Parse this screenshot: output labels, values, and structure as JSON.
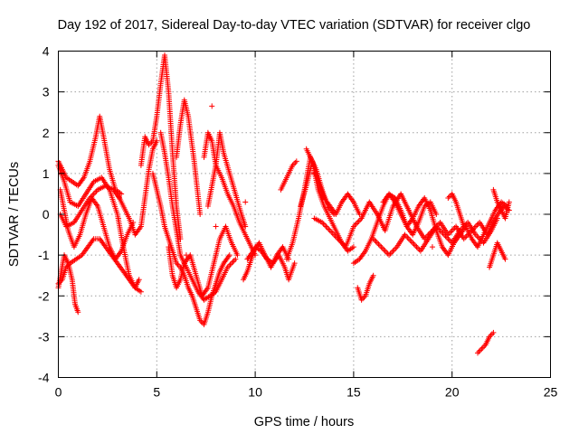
{
  "chart_data": {
    "type": "scatter",
    "title": "Day 192 of 2017, Sidereal Day-to-day VTEC variation (SDTVAR) for receiver clgo",
    "xlabel": "GPS time / hours",
    "ylabel": "SDTVAR / TECUs",
    "xlim": [
      0,
      25
    ],
    "ylim": [
      -4,
      4
    ],
    "x_ticks": [
      0,
      5,
      10,
      15,
      20,
      25
    ],
    "y_ticks": [
      -4,
      -3,
      -2,
      -1,
      0,
      1,
      2,
      3,
      4
    ],
    "x_tick_labels": [
      "0",
      "5",
      "10",
      "15",
      "20",
      "25"
    ],
    "y_tick_labels": [
      "-4",
      "-3",
      "-2",
      "-1",
      "0",
      "1",
      "2",
      "3",
      "4"
    ],
    "grid": true,
    "marker": "+",
    "series": [
      {
        "name": "SDTVAR",
        "color": "#ff0000",
        "tracks": [
          {
            "x": [
              0.0,
              0.2,
              0.4,
              0.7,
              1.0,
              1.3,
              1.6,
              1.9,
              2.1,
              2.3,
              2.6,
              2.9,
              3.2
            ],
            "y": [
              1.3,
              1.1,
              0.9,
              0.8,
              0.7,
              0.9,
              1.3,
              1.9,
              2.4,
              1.9,
              1.1,
              0.6,
              0.5
            ]
          },
          {
            "x": [
              0.0,
              0.15,
              0.3,
              0.5,
              0.7,
              0.85,
              1.0
            ],
            "y": [
              -1.8,
              -1.4,
              -1.0,
              -1.2,
              -1.6,
              -2.2,
              -2.4
            ]
          },
          {
            "x": [
              0.0,
              0.3,
              0.6,
              1.0,
              1.4,
              1.8,
              2.2,
              2.6,
              3.0,
              3.3,
              3.6,
              3.9,
              4.1
            ],
            "y": [
              1.2,
              0.8,
              0.3,
              0.2,
              0.5,
              0.8,
              0.9,
              0.6,
              0.0,
              -0.8,
              -1.5,
              -1.8,
              -1.6
            ]
          },
          {
            "x": [
              0.0,
              0.2,
              0.4,
              0.6,
              0.9,
              1.2,
              1.5,
              1.8,
              2.1,
              2.4,
              2.7,
              3.0,
              3.3,
              3.6,
              3.9,
              4.2
            ],
            "y": [
              -1.7,
              -1.6,
              -1.3,
              -1.2,
              -1.1,
              -1.0,
              -0.8,
              -0.6,
              -0.6,
              -0.8,
              -1.0,
              -1.2,
              -1.4,
              -1.6,
              -1.8,
              -1.9
            ]
          },
          {
            "x": [
              0.1,
              0.3,
              0.5,
              0.8,
              1.1,
              1.4,
              1.7,
              2.0,
              2.3,
              2.6,
              2.9,
              3.2,
              3.5,
              3.8
            ],
            "y": [
              0.6,
              0.1,
              -0.4,
              -0.8,
              -0.5,
              0.0,
              0.4,
              0.2,
              -0.3,
              -0.8,
              -1.1,
              -0.9,
              -0.5,
              -0.2
            ]
          },
          {
            "x": [
              0.1,
              0.4,
              0.8,
              1.2,
              1.6,
              2.0,
              2.4,
              2.8,
              3.1
            ],
            "y": [
              0.0,
              -0.3,
              -0.2,
              0.1,
              0.4,
              0.6,
              0.7,
              0.6,
              0.4
            ]
          },
          {
            "x": [
              3.0,
              3.3,
              3.6,
              3.9,
              4.2,
              4.4,
              4.6,
              4.8,
              5.0
            ],
            "y": [
              0.5,
              0.2,
              -0.1,
              -0.5,
              -0.3,
              0.4,
              1.1,
              1.6,
              1.8
            ]
          },
          {
            "x": [
              4.2,
              4.4,
              4.6,
              4.8,
              5.0,
              5.2,
              5.4,
              5.6,
              5.8,
              6.0,
              6.2
            ],
            "y": [
              1.2,
              1.9,
              1.7,
              1.8,
              2.4,
              3.2,
              3.9,
              3.0,
              1.5,
              0.2,
              -0.6
            ]
          },
          {
            "x": [
              4.8,
              5.0,
              5.2,
              5.4,
              5.6,
              5.8,
              6.0,
              6.2,
              6.4,
              6.6,
              6.8,
              7.0,
              7.2,
              7.4,
              7.6,
              7.8,
              8.0,
              8.2,
              8.4,
              8.7
            ],
            "y": [
              1.0,
              0.6,
              0.2,
              -0.3,
              -0.6,
              -0.9,
              -1.2,
              -1.3,
              -1.5,
              -1.8,
              -2.0,
              -2.3,
              -2.6,
              -2.7,
              -2.4,
              -2.0,
              -1.7,
              -1.4,
              -1.2,
              -1.0
            ]
          },
          {
            "x": [
              5.2,
              5.4,
              5.6,
              5.8,
              6.0,
              6.2,
              6.5,
              6.8,
              7.1,
              7.4,
              7.7,
              8.0,
              8.3,
              8.6,
              9.0
            ],
            "y": [
              2.0,
              1.5,
              0.9,
              0.2,
              -0.4,
              -1.0,
              -1.3,
              -1.6,
              -1.9,
              -2.1,
              -2.0,
              -1.9,
              -1.6,
              -1.3,
              -1.1
            ]
          },
          {
            "x": [
              5.6,
              5.8,
              6.0,
              6.2,
              6.4,
              6.7,
              7.0,
              7.3,
              7.6,
              7.9,
              8.2,
              8.5,
              8.8,
              9.1
            ],
            "y": [
              -0.8,
              -1.5,
              -1.8,
              -1.6,
              -1.2,
              -1.0,
              -1.5,
              -2.0,
              -1.8,
              -1.2,
              -0.6,
              -0.3,
              -0.7,
              -1.0
            ]
          },
          {
            "x": [
              6.0,
              6.2,
              6.4,
              6.6,
              6.9,
              7.2
            ],
            "y": [
              1.4,
              2.2,
              2.8,
              2.4,
              1.3,
              0.0
            ]
          },
          {
            "x": [
              7.4,
              7.6,
              7.8,
              8.0,
              8.2,
              8.4,
              8.7,
              9.0,
              9.3,
              9.5
            ],
            "y": [
              1.4,
              2.0,
              1.8,
              1.2,
              2.0,
              1.5,
              1.0,
              0.5,
              0.0,
              -0.3
            ]
          },
          {
            "x": [
              7.6,
              7.8,
              8.0,
              8.3,
              8.6,
              8.9,
              9.2,
              9.5,
              9.8,
              10.0
            ],
            "y": [
              0.2,
              0.7,
              1.2,
              0.9,
              0.5,
              0.2,
              -0.2,
              -0.5,
              -0.8,
              -1.0
            ]
          },
          {
            "x": [
              9.4,
              9.6,
              9.8,
              10.0,
              10.3,
              10.6,
              10.9,
              11.2,
              11.5,
              11.7,
              12.0
            ],
            "y": [
              -1.6,
              -1.4,
              -1.1,
              -0.8,
              -0.9,
              -1.1,
              -1.2,
              -1.0,
              -1.3,
              -1.6,
              -1.2
            ]
          },
          {
            "x": [
              9.6,
              9.9,
              10.2,
              10.5,
              10.8,
              11.1,
              11.4,
              11.7
            ],
            "y": [
              -1.1,
              -0.9,
              -0.7,
              -1.0,
              -1.3,
              -1.0,
              -0.8,
              -1.1
            ]
          },
          {
            "x": [
              11.3,
              11.6,
              11.9,
              12.1
            ],
            "y": [
              0.6,
              0.9,
              1.2,
              1.3
            ]
          },
          {
            "x": [
              11.6,
              11.9,
              12.2,
              12.5,
              12.8,
              13.1,
              13.4,
              13.7,
              14.0
            ],
            "y": [
              -1.1,
              -0.7,
              -0.1,
              0.6,
              1.4,
              1.1,
              0.6,
              0.2,
              0.0
            ]
          },
          {
            "x": [
              12.3,
              12.6,
              12.9,
              13.2,
              13.5,
              13.8,
              14.1,
              14.4,
              14.7,
              15.0
            ],
            "y": [
              0.2,
              0.7,
              1.3,
              0.6,
              0.2,
              -0.1,
              -0.4,
              -0.7,
              -0.9,
              -0.8
            ]
          },
          {
            "x": [
              12.6,
              12.9,
              13.2,
              13.5,
              13.8,
              14.1,
              14.4,
              14.7,
              15.0,
              15.3
            ],
            "y": [
              1.6,
              1.3,
              0.8,
              0.4,
              0.2,
              0.0,
              0.3,
              0.5,
              0.3,
              0.0
            ]
          },
          {
            "x": [
              13.0,
              13.4,
              13.8,
              14.2,
              14.6,
              15.0,
              15.4,
              15.8,
              16.2,
              16.6,
              17.0,
              17.4,
              17.8,
              18.2,
              18.6,
              19.0,
              19.4,
              19.8,
              20.2,
              20.6,
              21.0,
              21.4,
              21.8,
              22.2,
              22.6,
              22.9
            ],
            "y": [
              -0.1,
              -0.2,
              -0.4,
              -0.6,
              -0.8,
              -0.3,
              -0.1,
              0.3,
              0.0,
              -0.4,
              0.2,
              0.5,
              0.1,
              -0.3,
              -0.6,
              -0.4,
              -0.2,
              -0.5,
              -0.3,
              -0.6,
              -0.4,
              -0.2,
              -0.5,
              -0.1,
              0.2,
              0.1
            ]
          },
          {
            "x": [
              15.0,
              15.3,
              15.6,
              15.9,
              16.2,
              16.5,
              16.8,
              17.1,
              17.4,
              17.7,
              18.0,
              18.3,
              18.6,
              18.9,
              19.2,
              19.5,
              19.8,
              20.1,
              20.4,
              20.7,
              21.0,
              21.3,
              21.6,
              21.9,
              22.2,
              22.5,
              22.8
            ],
            "y": [
              -1.2,
              -1.1,
              -0.9,
              -0.6,
              -0.2,
              0.2,
              0.5,
              0.3,
              0.0,
              -0.3,
              -0.1,
              0.2,
              0.4,
              0.1,
              -0.4,
              -0.8,
              -1.0,
              -0.7,
              -0.5,
              -0.3,
              -0.6,
              -0.8,
              -0.5,
              -0.2,
              0.1,
              0.3,
              0.2
            ]
          },
          {
            "x": [
              15.2,
              15.4,
              15.6,
              15.8,
              16.0
            ],
            "y": [
              -1.8,
              -2.1,
              -2.0,
              -1.7,
              -1.5
            ]
          },
          {
            "x": [
              16.0,
              16.4,
              16.8,
              17.2,
              17.6,
              18.0,
              18.4,
              18.8,
              19.2,
              19.6,
              20.0,
              20.4,
              20.8,
              21.2,
              21.6,
              22.0,
              22.3
            ],
            "y": [
              -0.6,
              -0.8,
              -1.0,
              -0.8,
              -0.5,
              -0.7,
              -0.9,
              -0.6,
              -0.3,
              -0.5,
              -0.7,
              -0.4,
              -0.2,
              -0.5,
              -0.7,
              -0.4,
              -0.1
            ]
          },
          {
            "x": [
              16.5,
              16.8,
              17.1,
              17.4,
              17.7,
              18.0,
              18.3,
              18.6,
              18.9,
              19.2
            ],
            "y": [
              0.3,
              0.5,
              0.4,
              0.1,
              -0.3,
              -0.5,
              -0.2,
              0.2,
              0.3,
              0.0
            ]
          },
          {
            "x": [
              19.8,
              20.0,
              20.2,
              20.4,
              20.6
            ],
            "y": [
              0.4,
              0.5,
              0.3,
              0.0,
              -0.3
            ]
          },
          {
            "x": [
              21.3,
              21.5,
              21.7,
              21.9,
              22.1
            ],
            "y": [
              -3.4,
              -3.3,
              -3.2,
              -3.0,
              -2.9
            ]
          },
          {
            "x": [
              21.9,
              22.1,
              22.3,
              22.5,
              22.7
            ],
            "y": [
              -1.3,
              -1.0,
              -0.7,
              -0.9,
              -1.1
            ]
          },
          {
            "x": [
              22.1,
              22.3,
              22.5,
              22.7,
              22.9
            ],
            "y": [
              0.6,
              0.3,
              0.1,
              -0.1,
              0.3
            ]
          }
        ],
        "points": [
          {
            "x": 7.8,
            "y": 2.65
          },
          {
            "x": 3.05,
            "y": -0.1
          },
          {
            "x": 6.5,
            "y": -1.0
          },
          {
            "x": 8.0,
            "y": -0.3
          },
          {
            "x": 9.5,
            "y": 0.3
          },
          {
            "x": 13.0,
            "y": 1.0
          },
          {
            "x": 19.0,
            "y": -0.8
          }
        ]
      }
    ]
  }
}
